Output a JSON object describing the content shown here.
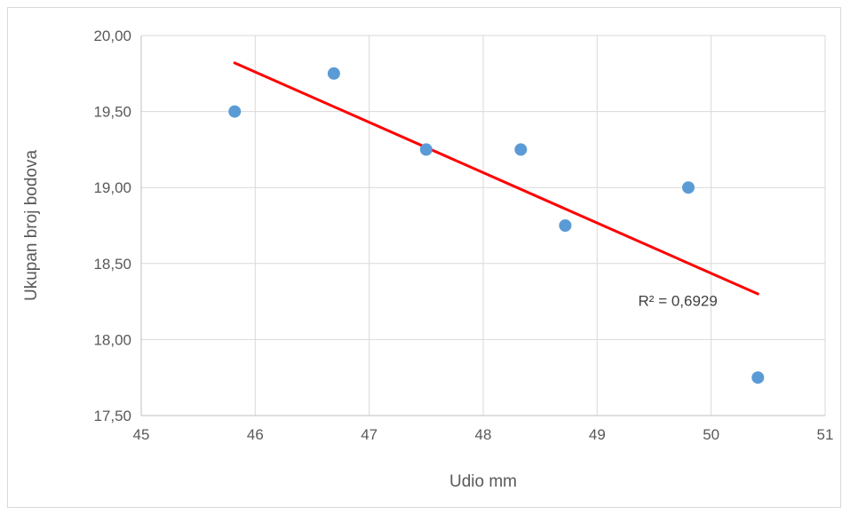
{
  "chart_data": {
    "type": "scatter",
    "title": "",
    "xlabel": "Udio mm",
    "ylabel": "Ukupan broj bodova",
    "xlim": [
      45,
      51
    ],
    "ylim": [
      17.5,
      20
    ],
    "x_ticks": [
      45,
      46,
      47,
      48,
      49,
      50,
      51
    ],
    "x_tick_labels": [
      "45",
      "46",
      "47",
      "48",
      "49",
      "50",
      "51"
    ],
    "y_ticks": [
      17.5,
      18,
      18.5,
      19,
      19.5,
      20
    ],
    "y_tick_labels": [
      "17,50",
      "18,00",
      "18,50",
      "19,00",
      "19,50",
      "20,00"
    ],
    "grid": true,
    "legend": "none",
    "series": [
      {
        "points": [
          {
            "x": 45.82,
            "y": 19.5
          },
          {
            "x": 46.69,
            "y": 19.75
          },
          {
            "x": 47.5,
            "y": 19.25
          },
          {
            "x": 48.33,
            "y": 19.25
          },
          {
            "x": 48.72,
            "y": 18.75
          },
          {
            "x": 49.8,
            "y": 19.0
          },
          {
            "x": 50.41,
            "y": 17.75
          }
        ],
        "color": "#5b9bd5"
      }
    ],
    "trendline": {
      "type": "linear",
      "from": {
        "x": 45.82,
        "y": 19.82
      },
      "to": {
        "x": 50.41,
        "y": 18.3
      },
      "color": "#ff0000",
      "annotation": "R² = 0,6929"
    }
  }
}
